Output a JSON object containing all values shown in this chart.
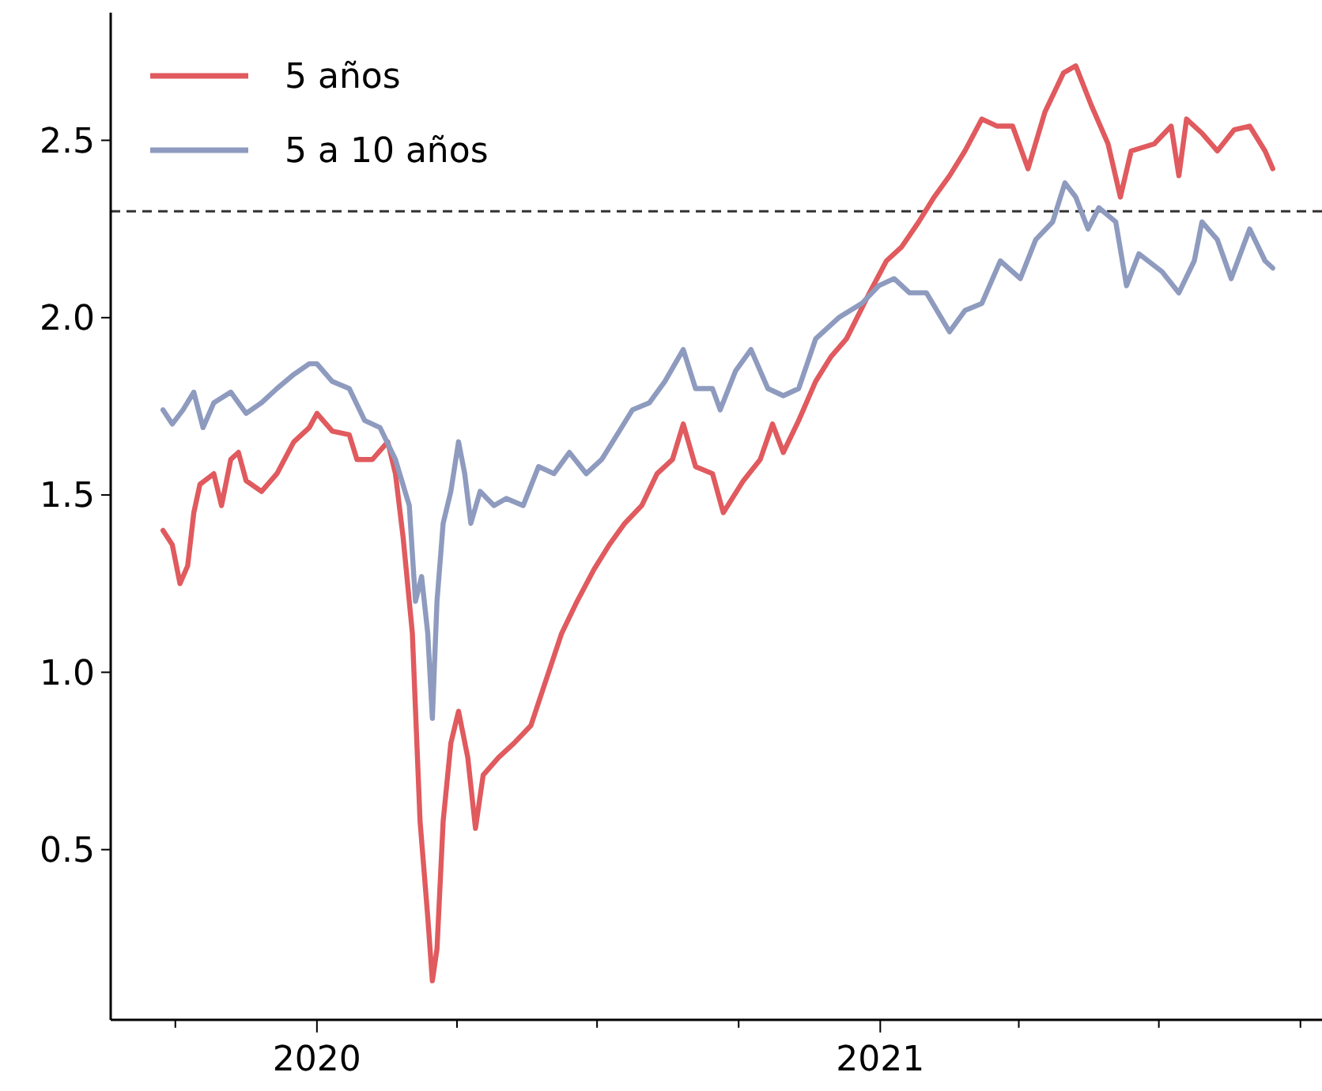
{
  "chart_data": {
    "type": "line",
    "xlim": [
      "2019-08-20",
      "2021-10-15"
    ],
    "ylim": [
      0.02,
      2.86
    ],
    "xticks": [
      {
        "value": "2019-10-01",
        "label": null
      },
      {
        "value": "2020-01-01",
        "label": "2020"
      },
      {
        "value": "2020-04-01",
        "label": null
      },
      {
        "value": "2020-07-01",
        "label": null
      },
      {
        "value": "2020-10-01",
        "label": null
      },
      {
        "value": "2021-01-01",
        "label": "2021"
      },
      {
        "value": "2021-04-01",
        "label": null
      },
      {
        "value": "2021-07-01",
        "label": null
      },
      {
        "value": "2021-10-01",
        "label": null
      }
    ],
    "yticks": [
      0.5,
      {
        "value": 1,
        "label": "1.0"
      },
      1.5,
      {
        "value": 2,
        "label": "2.0"
      },
      2.5
    ],
    "grid": false,
    "legend": "top left",
    "line_style": "solid",
    "marker": "none",
    "ref_lines": [
      {
        "axis": "y",
        "value": 2.3,
        "line_style": "dashed",
        "color": "#333333"
      }
    ],
    "series": [
      {
        "name": "5 años",
        "color": "#e05a5e",
        "x": [
          "2019-09-23",
          "2019-09-29",
          "2019-10-04",
          "2019-10-09",
          "2019-10-13",
          "2019-10-17",
          "2019-10-26",
          "2019-10-31",
          "2019-11-06",
          "2019-11-11",
          "2019-11-16",
          "2019-11-26",
          "2019-12-06",
          "2019-12-17",
          "2019-12-27",
          "2020-01-01",
          "2020-01-11",
          "2020-01-22",
          "2020-01-27",
          "2020-02-06",
          "2020-02-16",
          "2020-02-21",
          "2020-02-26",
          "2020-03-03",
          "2020-03-08",
          "2020-03-13",
          "2020-03-16",
          "2020-03-19",
          "2020-03-23",
          "2020-03-28",
          "2020-04-02",
          "2020-04-08",
          "2020-04-13",
          "2020-04-18",
          "2020-04-28",
          "2020-05-08",
          "2020-05-19",
          "2020-05-29",
          "2020-06-08",
          "2020-06-18",
          "2020-06-29",
          "2020-07-09",
          "2020-07-19",
          "2020-07-30",
          "2020-08-09",
          "2020-08-19",
          "2020-08-26",
          "2020-09-03",
          "2020-09-14",
          "2020-09-21",
          "2020-10-04",
          "2020-10-15",
          "2020-10-23",
          "2020-10-30",
          "2020-11-09",
          "2020-11-20",
          "2020-11-30",
          "2020-12-10",
          "2020-12-25",
          "2021-01-05",
          "2021-01-15",
          "2021-01-26",
          "2021-02-05",
          "2021-02-15",
          "2021-02-25",
          "2021-03-08",
          "2021-03-18",
          "2021-03-28",
          "2021-04-07",
          "2021-04-18",
          "2021-04-30",
          "2021-05-08",
          "2021-05-18",
          "2021-05-29",
          "2021-06-06",
          "2021-06-13",
          "2021-06-28",
          "2021-07-09",
          "2021-07-14",
          "2021-07-19",
          "2021-07-29",
          "2021-08-08",
          "2021-08-19",
          "2021-08-29",
          "2021-09-08",
          "2021-09-13"
        ],
        "values": [
          1.4,
          1.36,
          1.25,
          1.3,
          1.45,
          1.53,
          1.56,
          1.47,
          1.6,
          1.62,
          1.54,
          1.51,
          1.56,
          1.65,
          1.69,
          1.73,
          1.68,
          1.67,
          1.6,
          1.6,
          1.65,
          1.56,
          1.38,
          1.11,
          0.58,
          0.31,
          0.13,
          0.22,
          0.58,
          0.8,
          0.89,
          0.76,
          0.56,
          0.71,
          0.76,
          0.8,
          0.85,
          0.98,
          1.11,
          1.2,
          1.29,
          1.36,
          1.42,
          1.47,
          1.56,
          1.6,
          1.7,
          1.58,
          1.56,
          1.45,
          1.54,
          1.6,
          1.7,
          1.62,
          1.71,
          1.82,
          1.89,
          1.94,
          2.07,
          2.16,
          2.2,
          2.27,
          2.34,
          2.4,
          2.47,
          2.56,
          2.54,
          2.54,
          2.42,
          2.58,
          2.69,
          2.71,
          2.6,
          2.49,
          2.34,
          2.47,
          2.49,
          2.54,
          2.4,
          2.56,
          2.52,
          2.47,
          2.53,
          2.54,
          2.47,
          2.42
        ]
      },
      {
        "name": "5 a 10 años",
        "color": "#8e9bbf",
        "x": [
          "2019-09-23",
          "2019-09-29",
          "2019-10-06",
          "2019-10-13",
          "2019-10-19",
          "2019-10-26",
          "2019-11-06",
          "2019-11-16",
          "2019-11-26",
          "2019-12-06",
          "2019-12-17",
          "2019-12-27",
          "2020-01-01",
          "2020-01-11",
          "2020-01-22",
          "2020-02-01",
          "2020-02-11",
          "2020-02-21",
          "2020-03-01",
          "2020-03-05",
          "2020-03-09",
          "2020-03-13",
          "2020-03-16",
          "2020-03-19",
          "2020-03-23",
          "2020-03-28",
          "2020-04-02",
          "2020-04-06",
          "2020-04-10",
          "2020-04-16",
          "2020-04-25",
          "2020-05-03",
          "2020-05-14",
          "2020-05-24",
          "2020-06-03",
          "2020-06-13",
          "2020-06-24",
          "2020-07-04",
          "2020-07-14",
          "2020-07-24",
          "2020-08-04",
          "2020-08-14",
          "2020-08-26",
          "2020-09-03",
          "2020-09-14",
          "2020-09-19",
          "2020-09-29",
          "2020-10-09",
          "2020-10-20",
          "2020-10-30",
          "2020-11-09",
          "2020-11-20",
          "2020-12-05",
          "2020-12-20",
          "2020-12-31",
          "2021-01-10",
          "2021-01-20",
          "2021-01-31",
          "2021-02-15",
          "2021-02-25",
          "2021-03-08",
          "2021-03-20",
          "2021-04-02",
          "2021-04-12",
          "2021-04-23",
          "2021-05-01",
          "2021-05-08",
          "2021-05-16",
          "2021-05-23",
          "2021-06-03",
          "2021-06-10",
          "2021-06-18",
          "2021-07-03",
          "2021-07-14",
          "2021-07-24",
          "2021-07-29",
          "2021-08-08",
          "2021-08-17",
          "2021-08-29",
          "2021-09-08",
          "2021-09-13"
        ],
        "values": [
          1.74,
          1.7,
          1.74,
          1.79,
          1.69,
          1.76,
          1.79,
          1.73,
          1.76,
          1.8,
          1.84,
          1.87,
          1.87,
          1.82,
          1.8,
          1.71,
          1.69,
          1.6,
          1.47,
          1.2,
          1.27,
          1.11,
          0.87,
          1.2,
          1.42,
          1.51,
          1.65,
          1.56,
          1.42,
          1.51,
          1.47,
          1.49,
          1.47,
          1.58,
          1.56,
          1.62,
          1.56,
          1.6,
          1.67,
          1.74,
          1.76,
          1.82,
          1.91,
          1.8,
          1.8,
          1.74,
          1.85,
          1.91,
          1.8,
          1.78,
          1.8,
          1.94,
          2.0,
          2.04,
          2.09,
          2.11,
          2.07,
          2.07,
          1.96,
          2.02,
          2.04,
          2.16,
          2.11,
          2.22,
          2.27,
          2.38,
          2.34,
          2.25,
          2.31,
          2.27,
          2.09,
          2.18,
          2.13,
          2.07,
          2.16,
          2.27,
          2.22,
          2.11,
          2.25,
          2.16,
          2.14
        ]
      }
    ]
  }
}
